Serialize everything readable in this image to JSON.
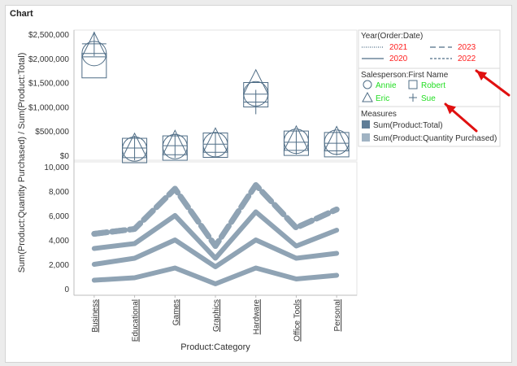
{
  "window": {
    "title": "Chart"
  },
  "chart_data": {
    "type": "line",
    "categories": [
      "Business",
      "Educational",
      "Games",
      "Graphics",
      "Hardware",
      "Office Tools",
      "Personal"
    ],
    "xlabel": "Product:Category",
    "ylabel": "Sum(Product:Quantity Purchased) / Sum(Product:Total)",
    "upper_panel": {
      "type": "scatter",
      "measure": "Sum(Product:Total)",
      "ylim": [
        0,
        2500000
      ],
      "ytick_values": [
        0,
        500000,
        1000000,
        1500000,
        2000000,
        2500000
      ],
      "ytick_labels": [
        "$0",
        "$500,000",
        "$1,000,000",
        "$1,500,000",
        "$2,000,000",
        "$2,500,000"
      ],
      "series": [
        {
          "name": "Annie",
          "marker": "circle",
          "values": [
            2100000,
            130000,
            180000,
            220000,
            1270000,
            290000,
            270000
          ]
        },
        {
          "name": "Robert",
          "marker": "square",
          "values": [
            1850000,
            100000,
            150000,
            210000,
            1250000,
            250000,
            220000
          ]
        },
        {
          "name": "Eric",
          "marker": "triangle",
          "values": [
            2250000,
            170000,
            230000,
            280000,
            1480000,
            320000,
            310000
          ]
        },
        {
          "name": "Sue",
          "marker": "cross",
          "values": [
            2300000,
            150000,
            200000,
            230000,
            1100000,
            270000,
            250000
          ]
        }
      ]
    },
    "lower_panel": {
      "type": "line",
      "measure": "Sum(Product:Quantity Purchased)",
      "ylim": [
        0,
        10000
      ],
      "ytick_values": [
        0,
        2000,
        4000,
        6000,
        8000,
        10000
      ],
      "ytick_labels": [
        "0",
        "2,000",
        "4,000",
        "6,000",
        "8,000",
        "10,000"
      ],
      "series": [
        {
          "name": "2021",
          "dash": "dotted",
          "values": [
            3300,
            3700,
            6000,
            2500,
            6300,
            3500,
            4800
          ]
        },
        {
          "name": "2022",
          "dash": "dashdot",
          "values": [
            4500,
            4900,
            8200,
            3500,
            8500,
            5000,
            6500
          ]
        },
        {
          "name": "2023",
          "dash": "dashed",
          "values": [
            4500,
            4900,
            8200,
            3500,
            8500,
            5000,
            6500
          ]
        },
        {
          "name": "2020",
          "dash": "solid",
          "values": [
            2000,
            2500,
            4000,
            1800,
            4000,
            2500,
            2900
          ]
        },
        {
          "name": "",
          "dash": "solid-bottom",
          "values": [
            700,
            900,
            1700,
            400,
            1700,
            800,
            1100
          ]
        }
      ]
    },
    "legend": {
      "placement": "right",
      "year_section": {
        "title": "Year(Order:Date)",
        "entries": [
          {
            "label": "2021",
            "style": "dotted"
          },
          {
            "label": "2023",
            "style": "dashed"
          },
          {
            "label": "2020",
            "style": "solid"
          },
          {
            "label": "2022",
            "style": "dashdot"
          }
        ]
      },
      "salesperson_section": {
        "title": "Salesperson:First Name",
        "entries": [
          {
            "label": "Annie",
            "marker": "circle"
          },
          {
            "label": "Robert",
            "marker": "square"
          },
          {
            "label": "Eric",
            "marker": "triangle"
          },
          {
            "label": "Sue",
            "marker": "cross"
          }
        ]
      },
      "measures_section": {
        "title": "Measures",
        "entries": [
          {
            "label": "Sum(Product:Total)",
            "color": "#5f7d97"
          },
          {
            "label": "Sum(Product:Quantity Purchased)",
            "color": "#a0b3c3"
          }
        ]
      }
    },
    "colors": {
      "marker_stroke": "#4f6d86",
      "line_color": "#8fa3b4",
      "year_label_color": "#ff2020",
      "salesperson_label_color": "#22dd22",
      "arrow_color": "#e01010"
    }
  }
}
